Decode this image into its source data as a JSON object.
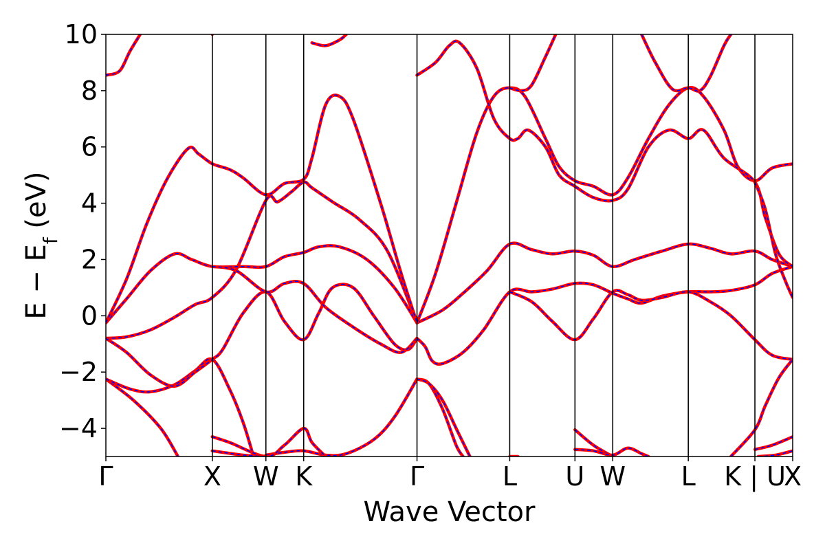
{
  "chart_data": {
    "type": "line",
    "xlabel": "Wave Vector",
    "ylabel_parts": {
      "main": "E − E",
      "sub": "f",
      "unit": " (eV)"
    },
    "ylim": [
      -5,
      10
    ],
    "xlim": [
      0,
      1
    ],
    "grid": false,
    "yticks": [
      -4,
      -2,
      0,
      2,
      4,
      6,
      8,
      10
    ],
    "ytick_labels": [
      "−4",
      "−2",
      "0",
      "2",
      "4",
      "6",
      "8",
      "10"
    ],
    "high_symmetry_points": [
      {
        "label": "Γ",
        "x": 0.0
      },
      {
        "label": "X",
        "x": 0.155
      },
      {
        "label": "W",
        "x": 0.233
      },
      {
        "label": "K",
        "x": 0.288
      },
      {
        "label": "Γ",
        "x": 0.453
      },
      {
        "label": "L",
        "x": 0.588
      },
      {
        "label": "U",
        "x": 0.683
      },
      {
        "label": "W",
        "x": 0.738
      },
      {
        "label": "L",
        "x": 0.848
      },
      {
        "label": "K | U",
        "x": 0.945
      },
      {
        "label": "X",
        "x": 1.0
      }
    ],
    "series_style": {
      "solid_color": "#ff0000",
      "dash_color": "#0000ff"
    },
    "bands": [
      [
        [
          0,
          -2.25
        ],
        [
          0.04,
          -3.0
        ],
        [
          0.08,
          -4.0
        ],
        [
          0.105,
          -5.0
        ]
      ],
      [
        [
          0,
          -2.25
        ],
        [
          0.035,
          -2.6
        ],
        [
          0.065,
          -2.7
        ],
        [
          0.1,
          -2.45
        ],
        [
          0.13,
          -1.95
        ],
        [
          0.155,
          -1.55
        ],
        [
          0.18,
          -2.6
        ],
        [
          0.2,
          -3.8
        ],
        [
          0.215,
          -5.0
        ]
      ],
      [
        [
          0,
          -0.8
        ],
        [
          0.03,
          -0.75
        ],
        [
          0.065,
          -0.5
        ],
        [
          0.1,
          -0.05
        ],
        [
          0.13,
          0.4
        ],
        [
          0.155,
          0.65
        ],
        [
          0.19,
          1.65
        ],
        [
          0.233,
          4.1
        ],
        [
          0.25,
          4.05
        ],
        [
          0.27,
          4.4
        ],
        [
          0.288,
          4.75
        ],
        [
          0.3,
          4.55
        ],
        [
          0.33,
          4.05
        ],
        [
          0.37,
          3.4
        ],
        [
          0.41,
          2.3
        ],
        [
          0.453,
          -0.25
        ]
      ],
      [
        [
          0,
          -0.8
        ],
        [
          0.03,
          -1.3
        ],
        [
          0.065,
          -2.1
        ],
        [
          0.1,
          -2.5
        ],
        [
          0.13,
          -2.0
        ],
        [
          0.155,
          -1.55
        ],
        [
          0.17,
          -1.2
        ],
        [
          0.2,
          0.1
        ],
        [
          0.233,
          0.85
        ],
        [
          0.26,
          -0.2
        ],
        [
          0.288,
          -0.85
        ],
        [
          0.31,
          0.1
        ],
        [
          0.33,
          1.0
        ],
        [
          0.36,
          1.0
        ],
        [
          0.39,
          0.0
        ],
        [
          0.42,
          -1.0
        ],
        [
          0.44,
          -1.2
        ],
        [
          0.453,
          -0.8
        ]
      ],
      [
        [
          0,
          -0.25
        ],
        [
          0.03,
          0.6
        ],
        [
          0.065,
          1.6
        ],
        [
          0.1,
          2.2
        ],
        [
          0.125,
          2.0
        ],
        [
          0.155,
          1.75
        ],
        [
          0.2,
          1.75
        ],
        [
          0.233,
          1.75
        ],
        [
          0.26,
          2.1
        ],
        [
          0.288,
          2.25
        ],
        [
          0.31,
          2.45
        ],
        [
          0.34,
          2.45
        ],
        [
          0.38,
          2.0
        ],
        [
          0.42,
          1.0
        ],
        [
          0.453,
          -0.25
        ]
      ],
      [
        [
          0,
          -0.25
        ],
        [
          0.03,
          1.3
        ],
        [
          0.06,
          3.3
        ],
        [
          0.09,
          4.9
        ],
        [
          0.12,
          5.95
        ],
        [
          0.135,
          5.75
        ],
        [
          0.155,
          5.4
        ],
        [
          0.18,
          5.2
        ],
        [
          0.2,
          4.9
        ],
        [
          0.233,
          4.3
        ],
        [
          0.26,
          4.7
        ],
        [
          0.288,
          4.85
        ],
        [
          0.3,
          5.6
        ],
        [
          0.32,
          7.5
        ],
        [
          0.34,
          7.8
        ],
        [
          0.36,
          7.0
        ],
        [
          0.4,
          4.0
        ],
        [
          0.43,
          1.5
        ],
        [
          0.453,
          -0.25
        ]
      ],
      [
        [
          0.155,
          1.75
        ],
        [
          0.19,
          1.6
        ],
        [
          0.233,
          0.85
        ],
        [
          0.26,
          1.15
        ],
        [
          0.288,
          1.15
        ],
        [
          0.32,
          0.3
        ],
        [
          0.36,
          -0.4
        ],
        [
          0.4,
          -1.0
        ],
        [
          0.43,
          -1.3
        ],
        [
          0.453,
          -0.8
        ]
      ],
      [
        [
          0,
          8.55
        ],
        [
          0.02,
          8.7
        ],
        [
          0.035,
          9.4
        ],
        [
          0.05,
          10.0
        ]
      ],
      [
        [
          0.155,
          10.0
        ],
        [
          0.155,
          10.0
        ]
      ],
      [
        [
          0.233,
          -4.95
        ],
        [
          0.26,
          -4.85
        ],
        [
          0.288,
          -4.8
        ],
        [
          0.32,
          -4.95
        ],
        [
          0.35,
          -4.9
        ],
        [
          0.39,
          -4.4
        ],
        [
          0.42,
          -3.6
        ],
        [
          0.453,
          -2.25
        ]
      ],
      [
        [
          0.155,
          -4.3
        ],
        [
          0.18,
          -4.5
        ],
        [
          0.233,
          -5.0
        ],
        [
          0.26,
          -4.6
        ],
        [
          0.288,
          -4.0
        ],
        [
          0.3,
          -4.5
        ],
        [
          0.32,
          -5.0
        ]
      ],
      [
        [
          0.155,
          -4.8
        ],
        [
          0.2,
          -4.95
        ],
        [
          0.233,
          -5.0
        ]
      ],
      [
        [
          0.453,
          -2.25
        ],
        [
          0.47,
          -2.4
        ],
        [
          0.49,
          -3.3
        ],
        [
          0.51,
          -4.6
        ],
        [
          0.52,
          -5.0
        ]
      ],
      [
        [
          0.453,
          -2.25
        ],
        [
          0.47,
          -2.4
        ],
        [
          0.49,
          -3.0
        ],
        [
          0.51,
          -4.0
        ],
        [
          0.53,
          -5.0
        ]
      ],
      [
        [
          0.453,
          -0.8
        ],
        [
          0.465,
          -1.1
        ],
        [
          0.475,
          -1.6
        ],
        [
          0.49,
          -1.7
        ],
        [
          0.52,
          -1.3
        ],
        [
          0.55,
          -0.5
        ],
        [
          0.588,
          0.85
        ],
        [
          0.62,
          0.85
        ],
        [
          0.65,
          0.95
        ],
        [
          0.683,
          1.15
        ],
        [
          0.71,
          1.1
        ],
        [
          0.738,
          0.8
        ],
        [
          0.76,
          0.6
        ],
        [
          0.78,
          0.45
        ],
        [
          0.81,
          0.7
        ],
        [
          0.848,
          0.85
        ],
        [
          0.88,
          0.85
        ],
        [
          0.91,
          0.9
        ],
        [
          0.945,
          1.1
        ],
        [
          0.97,
          1.5
        ],
        [
          1.0,
          1.75
        ]
      ],
      [
        [
          0.453,
          -0.25
        ],
        [
          0.49,
          0.2
        ],
        [
          0.52,
          0.8
        ],
        [
          0.555,
          1.6
        ],
        [
          0.588,
          2.55
        ],
        [
          0.62,
          2.35
        ],
        [
          0.65,
          2.2
        ],
        [
          0.683,
          2.3
        ],
        [
          0.71,
          2.15
        ],
        [
          0.738,
          1.75
        ],
        [
          0.77,
          2.0
        ],
        [
          0.81,
          2.3
        ],
        [
          0.848,
          2.55
        ],
        [
          0.88,
          2.4
        ],
        [
          0.91,
          2.2
        ],
        [
          0.945,
          2.3
        ],
        [
          0.97,
          2.0
        ],
        [
          1.0,
          1.75
        ]
      ],
      [
        [
          0.453,
          -0.25
        ],
        [
          0.48,
          1.5
        ],
        [
          0.51,
          4.0
        ],
        [
          0.54,
          6.5
        ],
        [
          0.565,
          7.8
        ],
        [
          0.588,
          8.1
        ],
        [
          0.61,
          7.8
        ],
        [
          0.64,
          6.3
        ],
        [
          0.66,
          5.3
        ],
        [
          0.683,
          4.8
        ],
        [
          0.71,
          4.6
        ],
        [
          0.738,
          4.3
        ],
        [
          0.76,
          4.9
        ],
        [
          0.79,
          6.3
        ],
        [
          0.82,
          7.5
        ],
        [
          0.848,
          8.1
        ],
        [
          0.87,
          7.8
        ],
        [
          0.9,
          6.6
        ],
        [
          0.92,
          5.3
        ],
        [
          0.945,
          4.8
        ],
        [
          0.97,
          5.25
        ],
        [
          1.0,
          5.4
        ]
      ],
      [
        [
          0.453,
          8.55
        ],
        [
          0.48,
          9.0
        ],
        [
          0.5,
          9.6
        ],
        [
          0.515,
          9.7
        ],
        [
          0.54,
          8.8
        ],
        [
          0.565,
          7.0
        ],
        [
          0.588,
          6.3
        ],
        [
          0.6,
          6.3
        ],
        [
          0.615,
          6.6
        ],
        [
          0.64,
          6.0
        ],
        [
          0.66,
          5.0
        ],
        [
          0.683,
          4.6
        ],
        [
          0.71,
          4.2
        ],
        [
          0.738,
          4.1
        ],
        [
          0.76,
          4.5
        ],
        [
          0.79,
          6.0
        ],
        [
          0.82,
          6.6
        ],
        [
          0.848,
          6.3
        ],
        [
          0.87,
          6.6
        ],
        [
          0.9,
          5.6
        ],
        [
          0.945,
          4.75
        ],
        [
          0.96,
          3.5
        ],
        [
          0.98,
          2.2
        ],
        [
          1.0,
          1.75
        ]
      ],
      [
        [
          0.588,
          -5.0
        ],
        [
          0.6,
          -5.0
        ]
      ],
      [
        [
          0.588,
          0.85
        ],
        [
          0.62,
          0.5
        ],
        [
          0.65,
          -0.2
        ],
        [
          0.683,
          -0.85
        ],
        [
          0.71,
          -0.1
        ],
        [
          0.738,
          0.85
        ],
        [
          0.76,
          0.75
        ],
        [
          0.78,
          0.55
        ],
        [
          0.81,
          0.65
        ],
        [
          0.848,
          0.85
        ],
        [
          0.88,
          0.5
        ],
        [
          0.91,
          0.0
        ],
        [
          0.945,
          -0.85
        ],
        [
          0.97,
          -1.4
        ],
        [
          1.0,
          -1.55
        ]
      ],
      [
        [
          0.588,
          8.1
        ],
        [
          0.605,
          8.0
        ],
        [
          0.62,
          8.2
        ],
        [
          0.64,
          9.2
        ],
        [
          0.655,
          10.0
        ]
      ],
      [
        [
          0.78,
          10.0
        ],
        [
          0.8,
          9.0
        ],
        [
          0.825,
          8.05
        ],
        [
          0.848,
          8.1
        ],
        [
          0.865,
          8.0
        ],
        [
          0.88,
          8.5
        ],
        [
          0.9,
          9.6
        ],
        [
          0.91,
          10.0
        ]
      ],
      [
        [
          0.683,
          -4.05
        ],
        [
          0.71,
          -4.6
        ],
        [
          0.738,
          -5.0
        ]
      ],
      [
        [
          0.683,
          -4.75
        ],
        [
          0.71,
          -4.8
        ],
        [
          0.738,
          -4.95
        ],
        [
          0.76,
          -4.7
        ],
        [
          0.78,
          -4.9
        ],
        [
          0.79,
          -5.0
        ]
      ],
      [
        [
          0.945,
          -4.75
        ],
        [
          0.97,
          -4.6
        ],
        [
          1.0,
          -4.3
        ]
      ],
      [
        [
          0.91,
          -5.0
        ],
        [
          0.945,
          -4.05
        ],
        [
          0.96,
          -3.2
        ],
        [
          0.98,
          -2.2
        ],
        [
          1.0,
          -1.55
        ]
      ],
      [
        [
          0.945,
          4.75
        ],
        [
          0.96,
          3.8
        ],
        [
          0.975,
          2.2
        ],
        [
          0.99,
          1.2
        ],
        [
          1.0,
          0.65
        ]
      ],
      [
        [
          0.95,
          -5.0
        ],
        [
          0.975,
          -4.95
        ],
        [
          1.0,
          -4.8
        ]
      ],
      [
        [
          0.3,
          9.7
        ],
        [
          0.32,
          9.6
        ],
        [
          0.34,
          9.8
        ],
        [
          0.35,
          10.0
        ]
      ],
      [
        [
          0.0,
          10.0
        ]
      ]
    ]
  }
}
